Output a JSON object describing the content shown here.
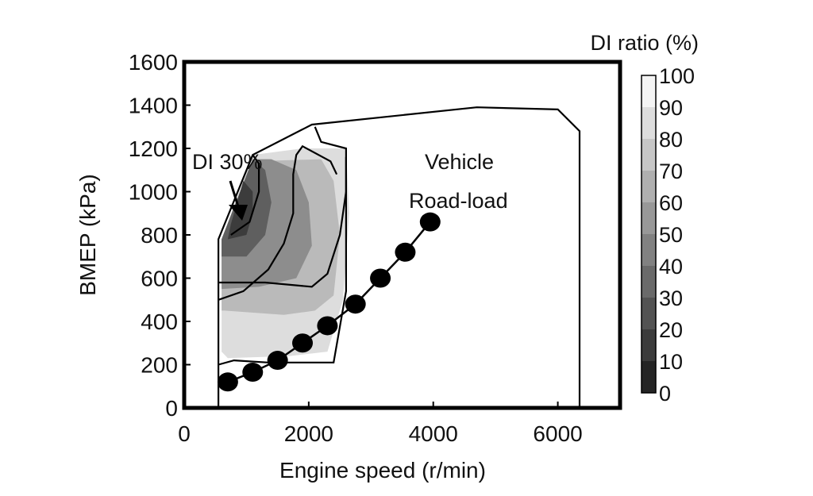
{
  "chart_data": {
    "type": "heatmap",
    "xlabel": "Engine speed (r/min)",
    "ylabel": "BMEP (kPa)",
    "xlim": [
      0,
      7000
    ],
    "ylim": [
      0,
      1600
    ],
    "x_ticks": [
      0,
      2000,
      4000,
      6000
    ],
    "y_ticks": [
      0,
      200,
      400,
      600,
      800,
      1000,
      1200,
      1400,
      1600
    ],
    "colorbar": {
      "label": "DI ratio (%)",
      "ticks": [
        0,
        10,
        20,
        30,
        40,
        50,
        60,
        70,
        80,
        90,
        100
      ]
    },
    "annotations": {
      "di30": "DI 30%",
      "vehicle_line1": "Vehicle",
      "vehicle_line2": "Road-load"
    },
    "operating_boundary": [
      [
        550,
        0
      ],
      [
        550,
        780
      ],
      [
        1100,
        1170
      ],
      [
        2050,
        1310
      ],
      [
        4700,
        1390
      ],
      [
        6000,
        1380
      ],
      [
        6350,
        1280
      ],
      [
        6350,
        0
      ]
    ],
    "contours": [
      {
        "level": 100,
        "points": [
          [
            550,
            200
          ],
          [
            800,
            210
          ],
          [
            2550,
            210
          ],
          [
            2700,
            540
          ],
          [
            2700,
            1270
          ],
          [
            2500,
            1350
          ],
          [
            2100,
            1350
          ],
          [
            2100,
            1250
          ],
          [
            1900,
            1200
          ],
          [
            1100,
            1170
          ],
          [
            550,
            780
          ],
          [
            550,
            200
          ]
        ]
      },
      {
        "level": 85,
        "points": [
          [
            700,
            230
          ],
          [
            1700,
            240
          ],
          [
            2300,
            260
          ],
          [
            2550,
            500
          ],
          [
            2650,
            900
          ],
          [
            2600,
            1200
          ],
          [
            1900,
            1200
          ],
          [
            1100,
            1170
          ],
          [
            600,
            780
          ],
          [
            600,
            260
          ],
          [
            700,
            230
          ]
        ]
      },
      {
        "level": 70,
        "points": [
          [
            650,
            450
          ],
          [
            1600,
            430
          ],
          [
            2100,
            450
          ],
          [
            2400,
            520
          ],
          [
            2500,
            800
          ],
          [
            2400,
            1050
          ],
          [
            2200,
            1150
          ],
          [
            1100,
            1140
          ],
          [
            600,
            780
          ],
          [
            600,
            450
          ],
          [
            650,
            450
          ]
        ]
      },
      {
        "level": 50,
        "points": [
          [
            600,
            550
          ],
          [
            1200,
            560
          ],
          [
            1800,
            600
          ],
          [
            2050,
            750
          ],
          [
            2000,
            950
          ],
          [
            1800,
            1100
          ],
          [
            1400,
            1150
          ],
          [
            1100,
            1150
          ],
          [
            600,
            780
          ],
          [
            600,
            550
          ]
        ]
      },
      {
        "level": 30,
        "points": [
          [
            600,
            700
          ],
          [
            1000,
            700
          ],
          [
            1300,
            800
          ],
          [
            1400,
            950
          ],
          [
            1300,
            1100
          ],
          [
            1100,
            1150
          ],
          [
            600,
            780
          ],
          [
            600,
            700
          ]
        ]
      },
      {
        "level": 15,
        "points": [
          [
            700,
            780
          ],
          [
            1000,
            800
          ],
          [
            1100,
            900
          ],
          [
            1100,
            1000
          ],
          [
            950,
            1050
          ],
          [
            750,
            850
          ],
          [
            700,
            780
          ]
        ]
      }
    ],
    "isolines": [
      [
        [
          750,
          800
        ],
        [
          1050,
          860
        ],
        [
          1200,
          1000
        ],
        [
          1200,
          1130
        ],
        [
          1100,
          1170
        ]
      ],
      [
        [
          550,
          500
        ],
        [
          950,
          540
        ],
        [
          1350,
          640
        ],
        [
          1600,
          760
        ],
        [
          1750,
          900
        ],
        [
          1750,
          1080
        ],
        [
          1800,
          1170
        ],
        [
          1900,
          1210
        ],
        [
          2350,
          1140
        ],
        [
          2450,
          1080
        ]
      ],
      [
        [
          550,
          580
        ],
        [
          1300,
          580
        ],
        [
          2050,
          560
        ],
        [
          2300,
          620
        ],
        [
          2500,
          800
        ],
        [
          2600,
          1000
        ],
        [
          2600,
          1200
        ],
        [
          2200,
          1230
        ],
        [
          2100,
          1300
        ]
      ],
      [
        [
          2600,
          1160
        ],
        [
          2600,
          540
        ],
        [
          2400,
          210
        ],
        [
          1350,
          210
        ],
        [
          800,
          220
        ],
        [
          550,
          200
        ]
      ]
    ],
    "road_load": {
      "x": [
        700,
        1100,
        1500,
        1900,
        2300,
        2750,
        3150,
        3550,
        3950
      ],
      "y": [
        120,
        165,
        220,
        300,
        380,
        480,
        600,
        720,
        860
      ]
    }
  }
}
